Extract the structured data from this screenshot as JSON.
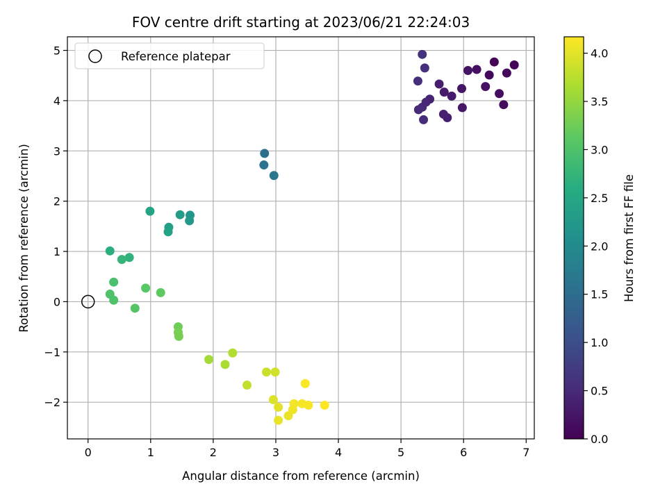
{
  "chart_data": {
    "type": "scatter",
    "title": "FOV centre drift starting at 2023/06/21 22:24:03",
    "xlabel": "Angular distance from reference (arcmin)",
    "ylabel": "Rotation from reference (arcmin)",
    "xlim": [
      -0.33,
      7.13
    ],
    "ylim": [
      -2.73,
      5.27
    ],
    "xticks": [
      0,
      1,
      2,
      3,
      4,
      5,
      6,
      7
    ],
    "yticks": [
      -2,
      -1,
      0,
      1,
      2,
      3,
      4,
      5
    ],
    "xtick_labels": [
      "0",
      "1",
      "2",
      "3",
      "4",
      "5",
      "6",
      "7"
    ],
    "ytick_labels": [
      "−2",
      "−1",
      "0",
      "1",
      "2",
      "3",
      "4",
      "5"
    ],
    "grid": true,
    "legend": {
      "position": "upper-left",
      "entries": [
        "Reference platepar"
      ]
    },
    "colormap": "viridis",
    "colorbar": {
      "label": "Hours from first FF file",
      "range": [
        0.0,
        4.17
      ],
      "ticks": [
        0.0,
        0.5,
        1.0,
        1.5,
        2.0,
        2.5,
        3.0,
        3.5,
        4.0
      ],
      "tick_labels": [
        "0.0",
        "0.5",
        "1.0",
        "1.5",
        "2.0",
        "2.5",
        "3.0",
        "3.5",
        "4.0"
      ]
    },
    "reference": {
      "x": 0,
      "y": 0,
      "label": "Reference platepar"
    },
    "series": [
      {
        "points": [
          {
            "x": 6.49,
            "y": 4.77,
            "c": 0.02
          },
          {
            "x": 6.81,
            "y": 4.71,
            "c": 0.05
          },
          {
            "x": 6.41,
            "y": 4.51,
            "c": 0.08
          },
          {
            "x": 6.69,
            "y": 4.55,
            "c": 0.1
          },
          {
            "x": 6.64,
            "y": 3.92,
            "c": 0.12
          },
          {
            "x": 6.57,
            "y": 4.14,
            "c": 0.15
          },
          {
            "x": 6.21,
            "y": 4.62,
            "c": 0.18
          },
          {
            "x": 6.35,
            "y": 4.28,
            "c": 0.2
          },
          {
            "x": 6.07,
            "y": 4.6,
            "c": 0.22
          },
          {
            "x": 5.97,
            "y": 4.24,
            "c": 0.25
          },
          {
            "x": 5.98,
            "y": 3.86,
            "c": 0.28
          },
          {
            "x": 5.81,
            "y": 4.09,
            "c": 0.3
          },
          {
            "x": 5.69,
            "y": 4.17,
            "c": 0.32
          },
          {
            "x": 5.61,
            "y": 4.33,
            "c": 0.35
          },
          {
            "x": 5.74,
            "y": 3.66,
            "c": 0.38
          },
          {
            "x": 5.68,
            "y": 3.73,
            "c": 0.4
          },
          {
            "x": 5.46,
            "y": 4.03,
            "c": 0.42
          },
          {
            "x": 5.4,
            "y": 3.97,
            "c": 0.45
          },
          {
            "x": 5.34,
            "y": 3.87,
            "c": 0.48
          },
          {
            "x": 5.28,
            "y": 3.82,
            "c": 0.5
          },
          {
            "x": 5.36,
            "y": 3.62,
            "c": 0.52
          },
          {
            "x": 5.27,
            "y": 4.39,
            "c": 0.55
          },
          {
            "x": 5.38,
            "y": 4.65,
            "c": 0.58
          },
          {
            "x": 5.34,
            "y": 4.92,
            "c": 0.6
          },
          {
            "x": 2.82,
            "y": 2.95,
            "c": 1.55
          },
          {
            "x": 2.81,
            "y": 2.72,
            "c": 1.6
          },
          {
            "x": 2.97,
            "y": 2.51,
            "c": 1.65
          },
          {
            "x": 1.63,
            "y": 1.72,
            "c": 2.2
          },
          {
            "x": 1.62,
            "y": 1.61,
            "c": 2.25
          },
          {
            "x": 1.47,
            "y": 1.73,
            "c": 2.3
          },
          {
            "x": 1.29,
            "y": 1.48,
            "c": 2.35
          },
          {
            "x": 1.28,
            "y": 1.39,
            "c": 2.4
          },
          {
            "x": 0.99,
            "y": 1.8,
            "c": 2.45
          },
          {
            "x": 0.35,
            "y": 1.01,
            "c": 2.65
          },
          {
            "x": 0.66,
            "y": 0.88,
            "c": 2.7
          },
          {
            "x": 0.54,
            "y": 0.84,
            "c": 2.75
          },
          {
            "x": 0.41,
            "y": 0.39,
            "c": 2.95
          },
          {
            "x": 0.35,
            "y": 0.15,
            "c": 3.0
          },
          {
            "x": 0.41,
            "y": 0.03,
            "c": 3.0
          },
          {
            "x": 0.75,
            "y": -0.13,
            "c": 3.05
          },
          {
            "x": 0.92,
            "y": 0.27,
            "c": 3.1
          },
          {
            "x": 1.16,
            "y": 0.18,
            "c": 3.15
          },
          {
            "x": 1.44,
            "y": -0.5,
            "c": 3.25
          },
          {
            "x": 1.44,
            "y": -0.61,
            "c": 3.3
          },
          {
            "x": 1.45,
            "y": -0.69,
            "c": 3.3
          },
          {
            "x": 1.93,
            "y": -1.15,
            "c": 3.6
          },
          {
            "x": 2.19,
            "y": -1.25,
            "c": 3.65
          },
          {
            "x": 2.31,
            "y": -1.02,
            "c": 3.7
          },
          {
            "x": 2.54,
            "y": -1.66,
            "c": 3.8
          },
          {
            "x": 2.85,
            "y": -1.4,
            "c": 3.85
          },
          {
            "x": 2.99,
            "y": -1.4,
            "c": 3.9
          },
          {
            "x": 2.96,
            "y": -1.95,
            "c": 3.95
          },
          {
            "x": 3.04,
            "y": -2.1,
            "c": 4.0
          },
          {
            "x": 3.04,
            "y": -2.36,
            "c": 4.05
          },
          {
            "x": 3.2,
            "y": -2.27,
            "c": 4.05
          },
          {
            "x": 3.27,
            "y": -2.15,
            "c": 4.08
          },
          {
            "x": 3.29,
            "y": -2.03,
            "c": 4.1
          },
          {
            "x": 3.42,
            "y": -2.03,
            "c": 4.12
          },
          {
            "x": 3.52,
            "y": -2.06,
            "c": 4.14
          },
          {
            "x": 3.47,
            "y": -1.63,
            "c": 4.15
          },
          {
            "x": 3.78,
            "y": -2.06,
            "c": 4.17
          }
        ]
      }
    ]
  }
}
